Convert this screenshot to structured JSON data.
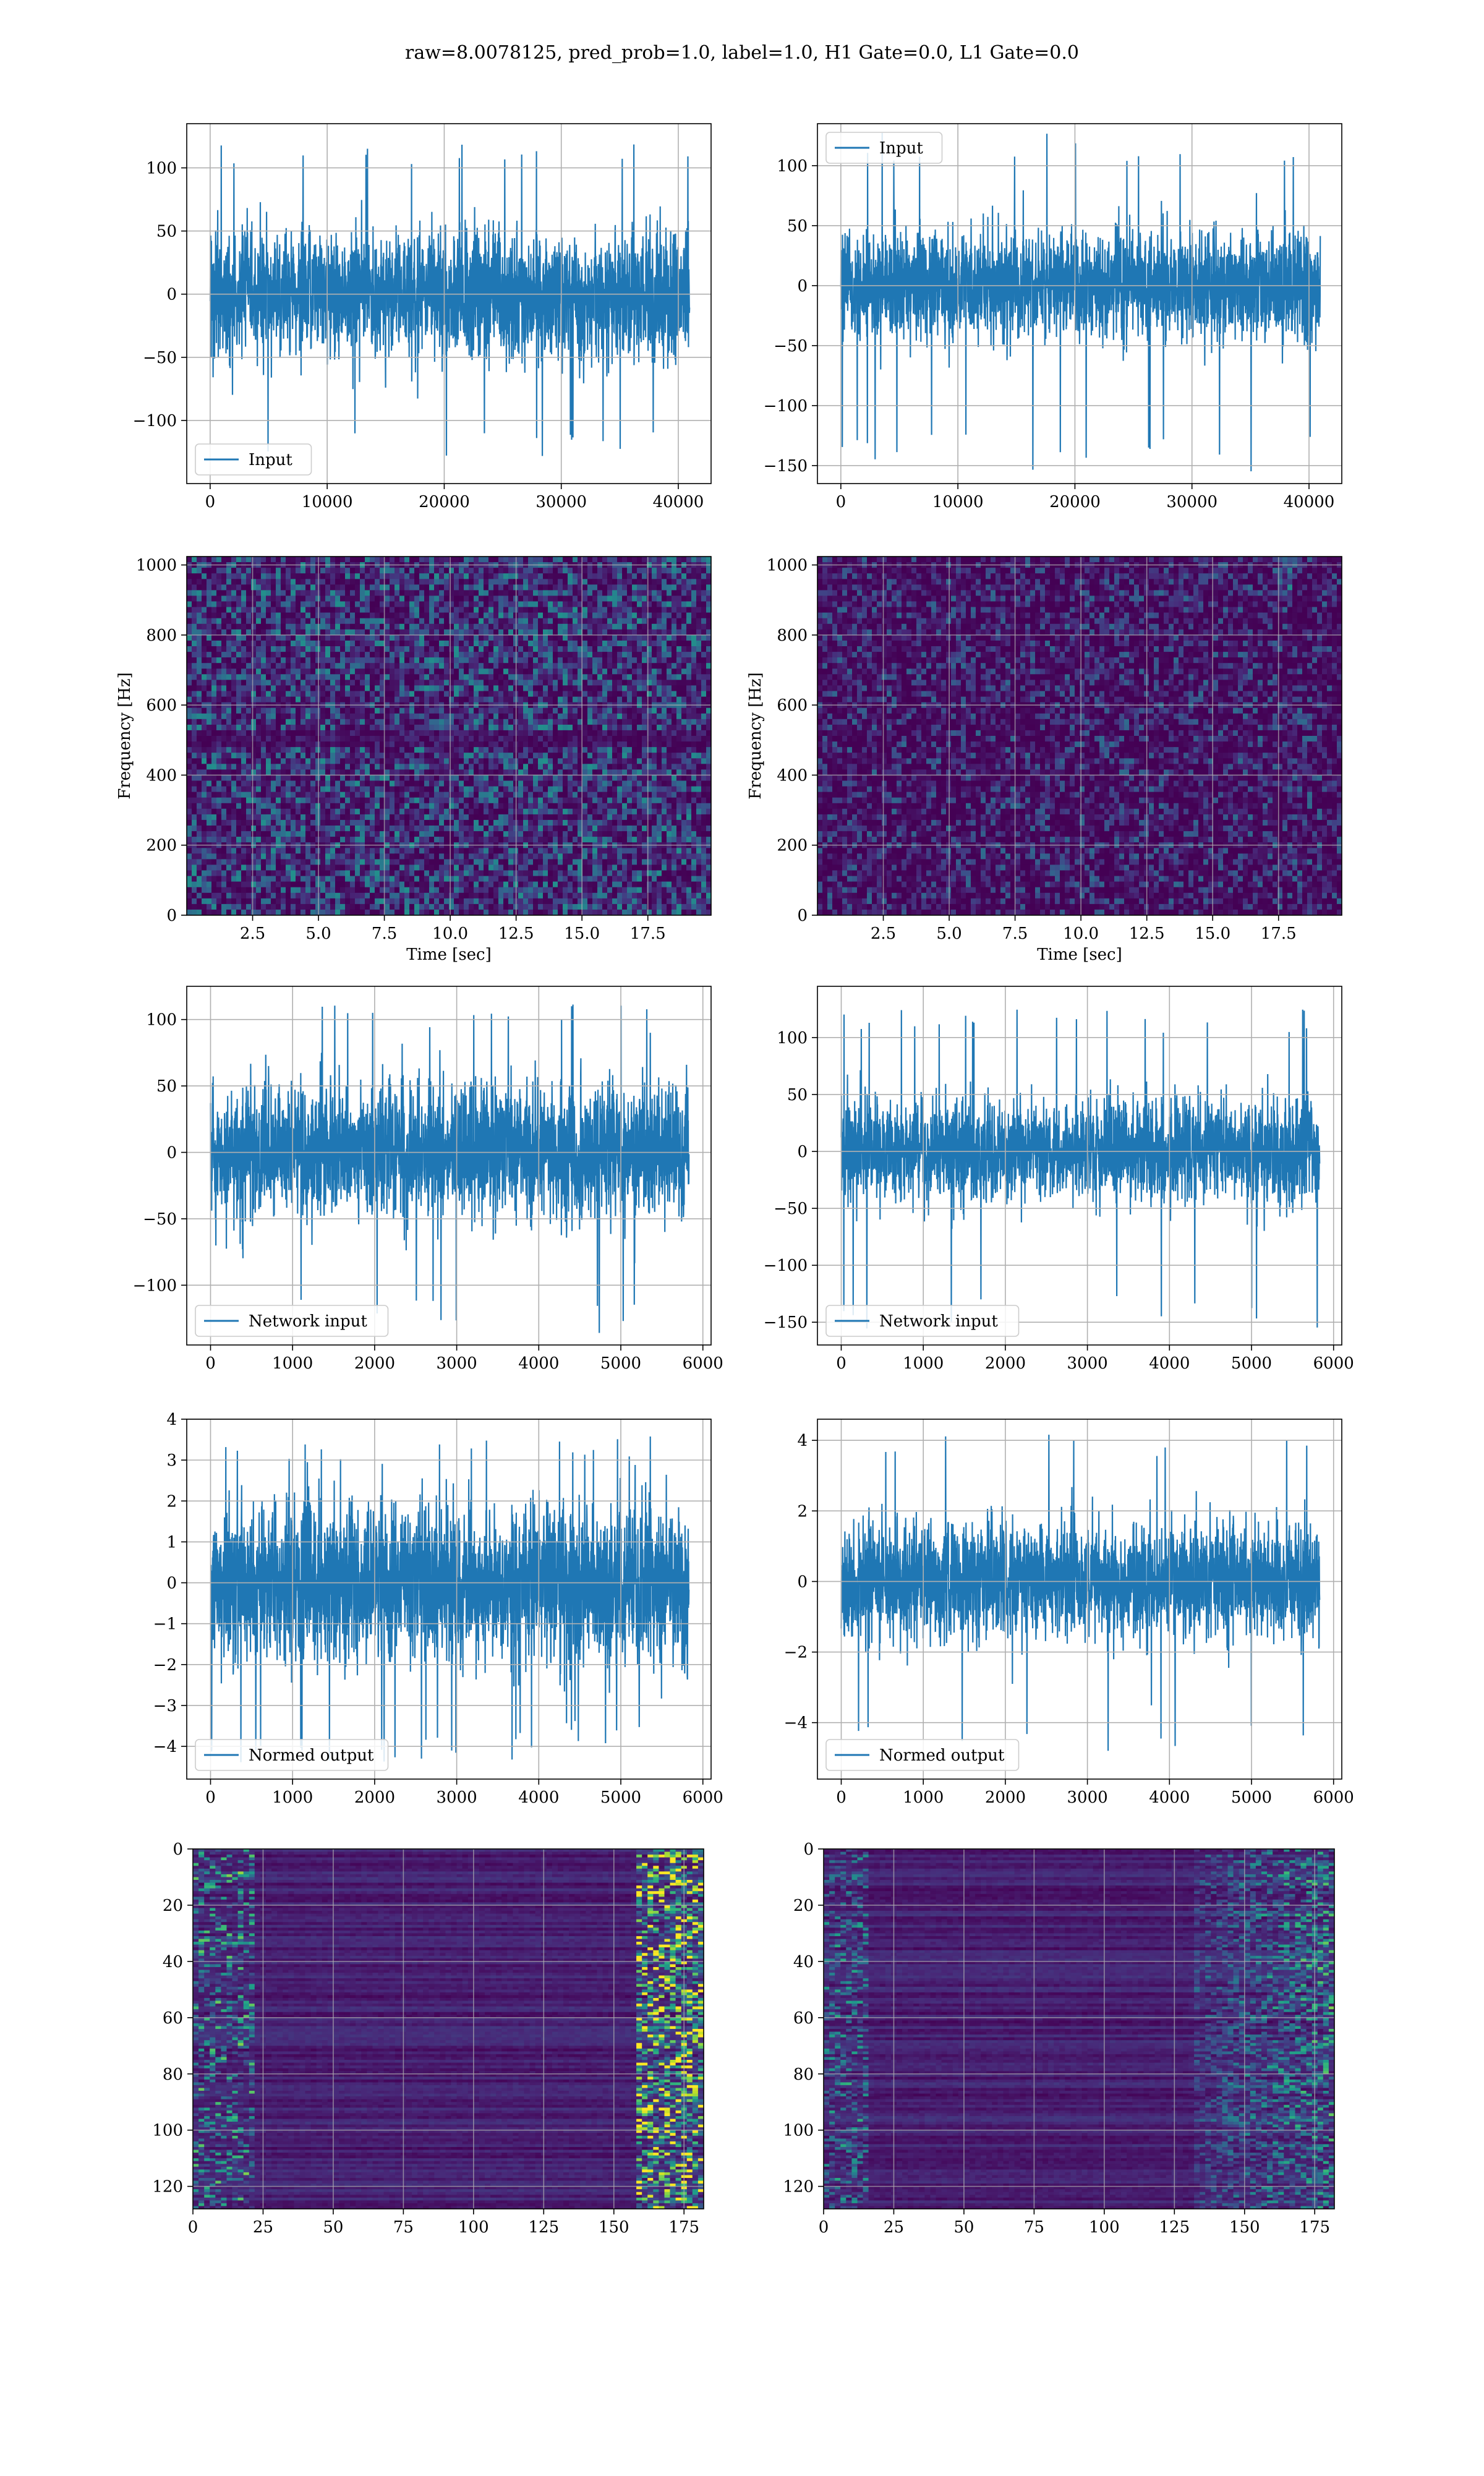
{
  "figure": {
    "title": "raw=8.0078125, pred_prob=1.0, label=1.0, H1 Gate=0.0, L1 Gate=0.0"
  },
  "colors": {
    "line": "#1f77b4",
    "grid": "#b0b0b0",
    "viridis_dark": "#440154",
    "viridis_mid": "#21918c",
    "viridis_bright": "#fde725"
  },
  "chart_data": [
    {
      "id": "h1-input",
      "type": "line",
      "xlim": [
        -2000,
        42800
      ],
      "ylim": [
        -150,
        135
      ],
      "xticks": [
        0,
        10000,
        20000,
        30000,
        40000
      ],
      "yticks": [
        -100,
        -50,
        0,
        50,
        100
      ],
      "tick_labels_y": [
        "−100",
        "−50",
        "0",
        "50",
        "100"
      ],
      "series": [
        {
          "name": "Input",
          "x_range": [
            0,
            40960
          ],
          "std": 25,
          "peak_max": 125,
          "peak_min": -135
        }
      ],
      "legend": "lower-left",
      "grid": true
    },
    {
      "id": "l1-input",
      "type": "line",
      "xlim": [
        -2000,
        42800
      ],
      "ylim": [
        -165,
        135
      ],
      "xticks": [
        0,
        10000,
        20000,
        30000,
        40000
      ],
      "yticks": [
        -150,
        -100,
        -50,
        0,
        50,
        100
      ],
      "tick_labels_y": [
        "−150",
        "−100",
        "−50",
        "0",
        "50",
        "100"
      ],
      "series": [
        {
          "name": "Input",
          "x_range": [
            0,
            40960
          ],
          "std": 22,
          "peak_max": 128,
          "peak_min": -155
        }
      ],
      "legend": "upper-left",
      "grid": true
    },
    {
      "id": "h1-spectrogram",
      "type": "heatmap",
      "xlim": [
        0,
        19.9
      ],
      "ylim": [
        0,
        1024
      ],
      "xticks": [
        2.5,
        5.0,
        7.5,
        10.0,
        12.5,
        15.0,
        17.5
      ],
      "yticks": [
        0,
        200,
        400,
        600,
        800,
        1000
      ],
      "xlabel": "Time [sec]",
      "ylabel": "Frequency [Hz]",
      "colormap": "viridis",
      "grid": true
    },
    {
      "id": "l1-spectrogram",
      "type": "heatmap",
      "xlim": [
        0,
        19.9
      ],
      "ylim": [
        0,
        1024
      ],
      "xticks": [
        2.5,
        5.0,
        7.5,
        10.0,
        12.5,
        15.0,
        17.5
      ],
      "yticks": [
        0,
        200,
        400,
        600,
        800,
        1000
      ],
      "xlabel": "Time [sec]",
      "ylabel": "Frequency [Hz]",
      "colormap": "viridis",
      "grid": true
    },
    {
      "id": "h1-network-input",
      "type": "line",
      "xlim": [
        -290,
        6100
      ],
      "ylim": [
        -145,
        125
      ],
      "xticks": [
        0,
        1000,
        2000,
        3000,
        4000,
        5000,
        6000
      ],
      "yticks": [
        -100,
        -50,
        0,
        50,
        100
      ],
      "tick_labels_y": [
        "−100",
        "−50",
        "0",
        "50",
        "100"
      ],
      "series": [
        {
          "name": "Network input",
          "x_range": [
            0,
            5830
          ],
          "std": 25,
          "peak_max": 112,
          "peak_min": -138
        }
      ],
      "legend": "lower-left",
      "grid": true
    },
    {
      "id": "l1-network-input",
      "type": "line",
      "xlim": [
        -290,
        6100
      ],
      "ylim": [
        -170,
        145
      ],
      "xticks": [
        0,
        1000,
        2000,
        3000,
        4000,
        5000,
        6000
      ],
      "yticks": [
        -150,
        -100,
        -50,
        0,
        50,
        100
      ],
      "tick_labels_y": [
        "−150",
        "−100",
        "−50",
        "0",
        "50",
        "100"
      ],
      "series": [
        {
          "name": "Network input",
          "x_range": [
            0,
            5830
          ],
          "std": 22,
          "peak_max": 130,
          "peak_min": -158
        }
      ],
      "legend": "lower-left",
      "grid": true
    },
    {
      "id": "h1-normed-output",
      "type": "line",
      "xlim": [
        -290,
        6100
      ],
      "ylim": [
        -4.8,
        4.0
      ],
      "xticks": [
        0,
        1000,
        2000,
        3000,
        4000,
        5000,
        6000
      ],
      "yticks": [
        -4,
        -3,
        -2,
        -1,
        0,
        1,
        2,
        3,
        4
      ],
      "tick_labels_y": [
        "−4",
        "−3",
        "−2",
        "−1",
        "0",
        "1",
        "2",
        "3",
        "4"
      ],
      "series": [
        {
          "name": "Normed output",
          "x_range": [
            0,
            5830
          ],
          "std": 0.9,
          "peak_max": 3.6,
          "peak_min": -4.4
        }
      ],
      "legend": "lower-left",
      "grid": true
    },
    {
      "id": "l1-normed-output",
      "type": "line",
      "xlim": [
        -290,
        6100
      ],
      "ylim": [
        -5.6,
        4.6
      ],
      "xticks": [
        0,
        1000,
        2000,
        3000,
        4000,
        5000,
        6000
      ],
      "yticks": [
        -4,
        -2,
        0,
        2,
        4
      ],
      "tick_labels_y": [
        "−4",
        "−2",
        "0",
        "2",
        "4"
      ],
      "series": [
        {
          "name": "Normed output",
          "x_range": [
            0,
            5830
          ],
          "std": 0.8,
          "peak_max": 4.2,
          "peak_min": -5.1
        }
      ],
      "legend": "lower-left",
      "grid": true
    },
    {
      "id": "h1-feature-map",
      "type": "heatmap",
      "xlim": [
        0,
        182
      ],
      "ylim": [
        128,
        0
      ],
      "xticks": [
        0,
        25,
        50,
        75,
        100,
        125,
        150,
        175
      ],
      "yticks": [
        0,
        20,
        40,
        60,
        80,
        100,
        120
      ],
      "colormap": "viridis",
      "grid": true
    },
    {
      "id": "l1-feature-map",
      "type": "heatmap",
      "xlim": [
        0,
        182
      ],
      "ylim": [
        128,
        0
      ],
      "xticks": [
        0,
        25,
        50,
        75,
        100,
        125,
        150,
        175
      ],
      "yticks": [
        0,
        20,
        40,
        60,
        80,
        100,
        120
      ],
      "colormap": "viridis",
      "grid": true
    }
  ]
}
